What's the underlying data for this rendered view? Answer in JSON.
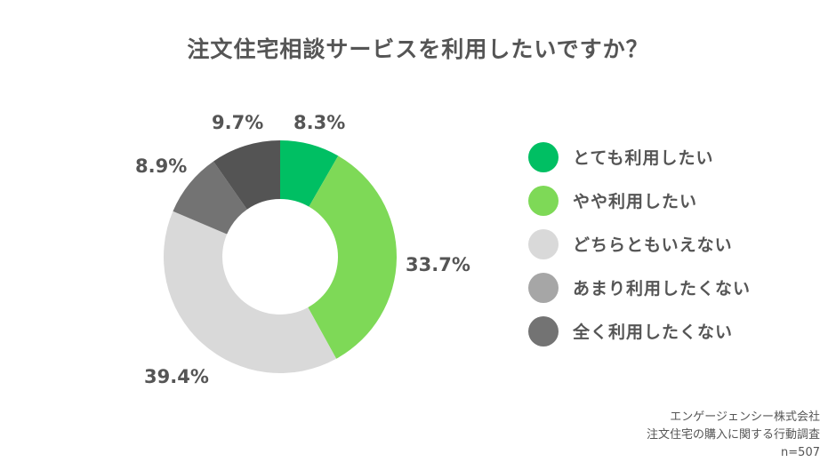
{
  "chart_data": {
    "type": "pie",
    "subtype": "donut",
    "title": "注文住宅相談サービスを利用したいですか？",
    "categories": [
      "とても利用したい",
      "やや利用したい",
      "どちらともいえない",
      "あまり利用したくない",
      "全く利用したくない"
    ],
    "values": [
      8.3,
      33.7,
      39.4,
      8.9,
      9.7
    ],
    "labels": [
      "8.3%",
      "33.7%",
      "39.4%",
      "8.9%",
      "9.7%"
    ],
    "slice_colors": [
      "#00bf63",
      "#7ed957",
      "#d9d9d9",
      "#737373",
      "#545454"
    ],
    "legend_colors": [
      "#00bf63",
      "#7ed957",
      "#d9d9d9",
      "#a6a6a6",
      "#737373"
    ],
    "legend_position": "right",
    "unit": "%"
  },
  "title": "注文住宅相談サービスを利用したいですか？",
  "slices": [
    {
      "label": "8.3%"
    },
    {
      "label": "33.7%"
    },
    {
      "label": "39.4%"
    },
    {
      "label": "8.9%"
    },
    {
      "label": "9.7%"
    }
  ],
  "legend": [
    {
      "label": "とても利用したい",
      "color": "#00bf63"
    },
    {
      "label": "やや利用したい",
      "color": "#7ed957"
    },
    {
      "label": "どちらともいえない",
      "color": "#d9d9d9"
    },
    {
      "label": "あまり利用したくない",
      "color": "#a6a6a6"
    },
    {
      "label": "全く利用したくない",
      "color": "#737373"
    }
  ],
  "source": {
    "company": "エンゲージェンシー株式会社",
    "survey": "注文住宅の購入に関する行動調査",
    "sample": "n=507"
  }
}
